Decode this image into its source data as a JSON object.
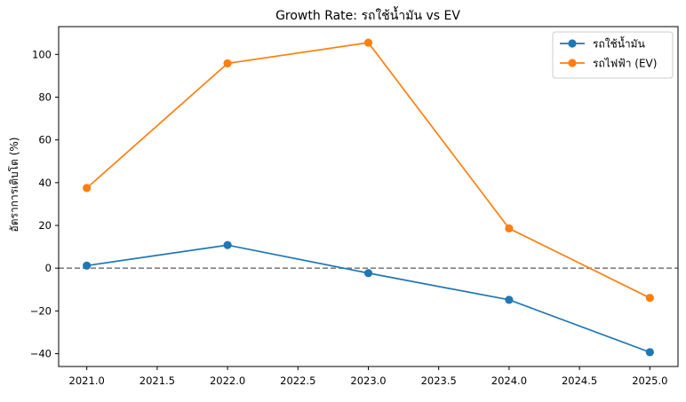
{
  "chart_data": {
    "type": "line",
    "title": "Growth Rate: รถใช้น้ำมัน vs EV",
    "xlabel": "",
    "ylabel": "อัตราการเติบโต (%)",
    "x": [
      2021.0,
      2022.0,
      2023.0,
      2024.0,
      2025.0
    ],
    "xlim": [
      2020.8,
      2025.2
    ],
    "ylim": [
      -46,
      113
    ],
    "xticks": [
      "2021.0",
      "2021.5",
      "2022.0",
      "2022.5",
      "2023.0",
      "2023.5",
      "2024.0",
      "2024.5",
      "2025.0"
    ],
    "yticks": [
      "−40",
      "−20",
      "0",
      "20",
      "40",
      "60",
      "80",
      "100"
    ],
    "reference_line": {
      "y": 0,
      "style": "dashed",
      "color": "#808080"
    },
    "legend_position": "top-right",
    "grid": false,
    "series": [
      {
        "name": "รถใช้น้ำมัน",
        "color": "#1f77b4",
        "values": [
          1.2,
          10.8,
          -2.3,
          -14.8,
          -39.3
        ]
      },
      {
        "name": "รถไฟฟ้า (EV)",
        "color": "#ff7f0e",
        "values": [
          37.5,
          95.8,
          105.5,
          18.6,
          -13.9
        ]
      }
    ]
  }
}
